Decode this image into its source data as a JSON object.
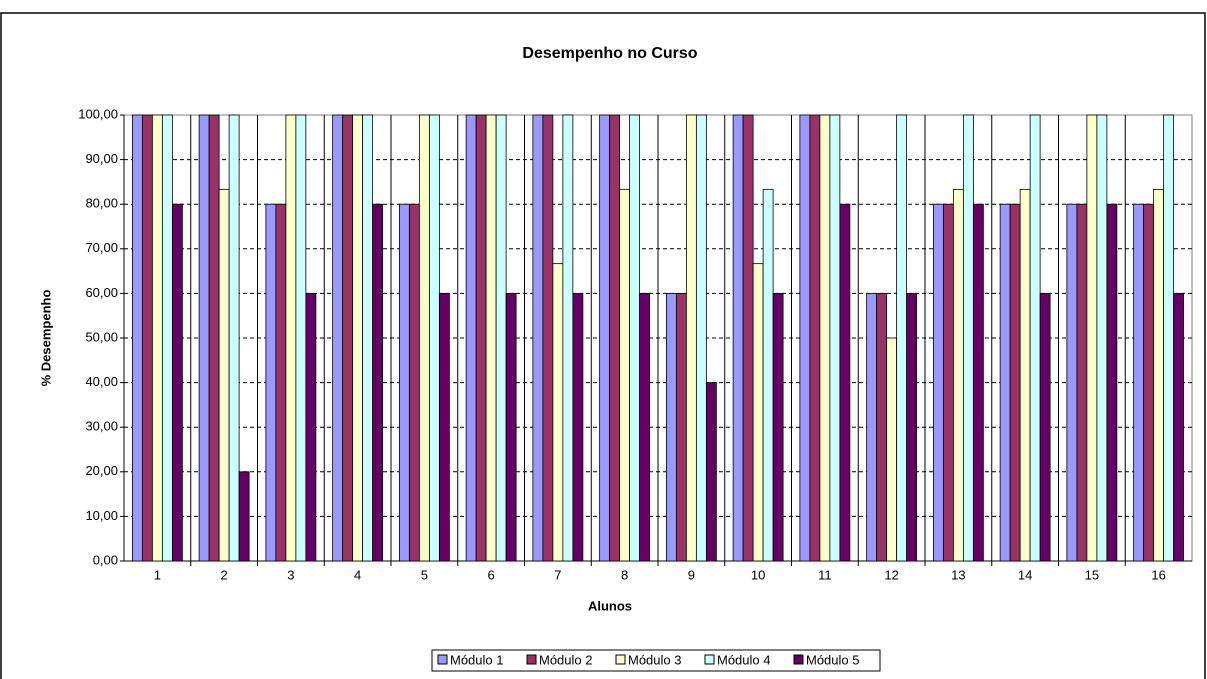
{
  "chart_data": {
    "type": "bar",
    "title": "Desempenho no Curso",
    "x_label": "Alunos",
    "y_label": "% Desempenho",
    "categories": [
      "1",
      "2",
      "3",
      "4",
      "5",
      "6",
      "7",
      "8",
      "9",
      "10",
      "11",
      "12",
      "13",
      "14",
      "15",
      "16"
    ],
    "series": [
      {
        "name": "Módulo 1",
        "color": "#9999ff",
        "values": [
          100,
          100,
          80,
          100,
          80,
          100,
          100,
          100,
          60,
          100,
          100,
          60,
          80,
          80,
          80,
          80
        ]
      },
      {
        "name": "Módulo 2",
        "color": "#993366",
        "values": [
          100,
          100,
          80,
          100,
          80,
          100,
          100,
          100,
          60,
          100,
          100,
          60,
          80,
          80,
          80,
          80
        ]
      },
      {
        "name": "Módulo 3",
        "color": "#ffffcc",
        "values": [
          100,
          83.33,
          100,
          100,
          100,
          100,
          66.67,
          83.33,
          100,
          66.67,
          100,
          50,
          83.33,
          83.33,
          100,
          83.33
        ]
      },
      {
        "name": "Módulo 4",
        "color": "#ccffff",
        "values": [
          100,
          100,
          100,
          100,
          100,
          100,
          100,
          100,
          100,
          83.33,
          100,
          100,
          100,
          100,
          100,
          100
        ]
      },
      {
        "name": "Módulo 5",
        "color": "#660066",
        "values": [
          80,
          20,
          60,
          80,
          60,
          60,
          60,
          60,
          40,
          60,
          80,
          60,
          80,
          60,
          80,
          60
        ]
      }
    ],
    "ylim": [
      0,
      100
    ],
    "yticks": [
      {
        "value": 0,
        "label": "0,00"
      },
      {
        "value": 10,
        "label": "10,00"
      },
      {
        "value": 20,
        "label": "20,00"
      },
      {
        "value": 30,
        "label": "30,00"
      },
      {
        "value": 40,
        "label": "40,00"
      },
      {
        "value": 50,
        "label": "50,00"
      },
      {
        "value": 60,
        "label": "60,00"
      },
      {
        "value": 70,
        "label": "70,00"
      },
      {
        "value": 80,
        "label": "80,00"
      },
      {
        "value": 90,
        "label": "90,00"
      },
      {
        "value": 100,
        "label": "100,00"
      }
    ],
    "grid": true,
    "legend": "bottom"
  }
}
